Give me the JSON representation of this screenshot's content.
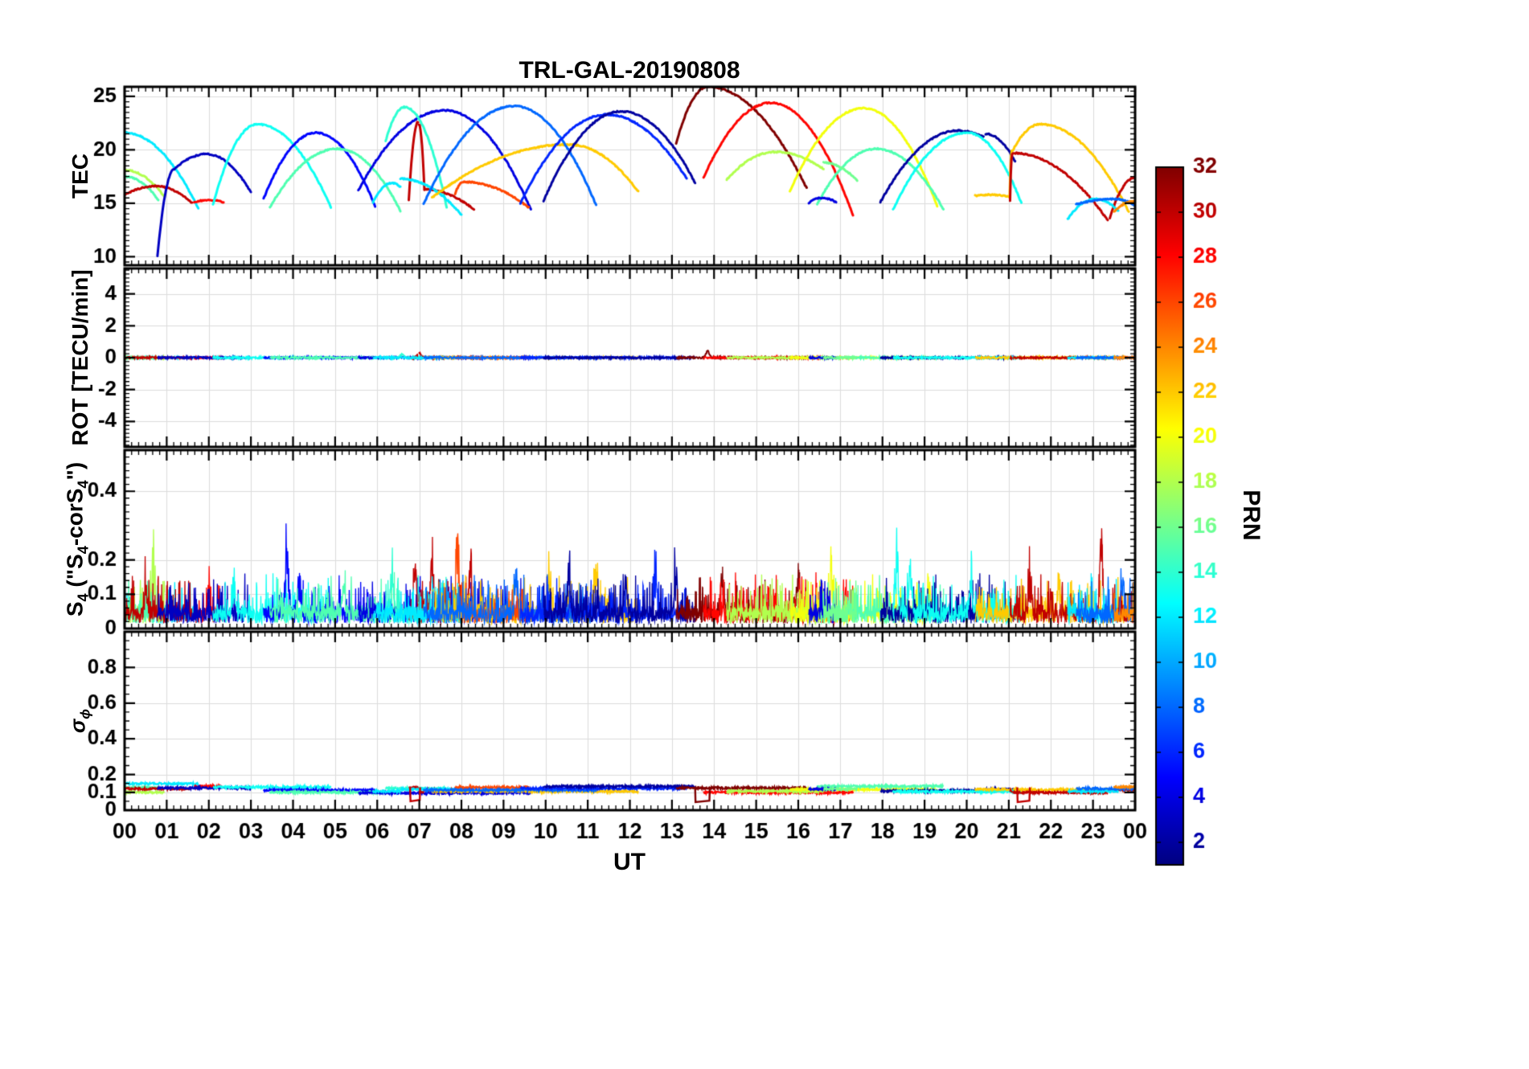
{
  "title": "TRL-GAL-20190808",
  "xlabel": "UT",
  "colorbar": {
    "label": "PRN",
    "vmin": 1,
    "vmax": 32,
    "tick_values": [
      2,
      4,
      6,
      8,
      10,
      12,
      14,
      16,
      18,
      20,
      22,
      24,
      26,
      28,
      30,
      32
    ],
    "tick_labels": [
      "2",
      "4",
      "6",
      "8",
      "10",
      "12",
      "14",
      "16",
      "18",
      "20",
      "22",
      "24",
      "26",
      "28",
      "30",
      "32"
    ]
  },
  "chart_data": {
    "type": "line",
    "title": "TRL-GAL-20190808",
    "colormap": "jet",
    "color_by": "PRN",
    "grid": true,
    "x_axis": {
      "label": "UT",
      "unit": "hours",
      "range": [
        0,
        24
      ],
      "tick_values": [
        0,
        1,
        2,
        3,
        4,
        5,
        6,
        7,
        8,
        9,
        10,
        11,
        12,
        13,
        14,
        15,
        16,
        17,
        18,
        19,
        20,
        21,
        22,
        23,
        24
      ],
      "tick_labels": [
        "00",
        "01",
        "02",
        "03",
        "04",
        "05",
        "06",
        "07",
        "08",
        "09",
        "10",
        "11",
        "12",
        "13",
        "14",
        "15",
        "16",
        "17",
        "18",
        "19",
        "20",
        "21",
        "22",
        "23",
        "00"
      ]
    },
    "panels": [
      {
        "id": "tec",
        "ylabel": "TEC",
        "ylim": [
          9.2,
          25.9
        ],
        "ytick_values": [
          10,
          15,
          20,
          25
        ],
        "ytick_labels": [
          "10",
          "15",
          "20",
          "25"
        ],
        "minor_step": 0.5
      },
      {
        "id": "rot",
        "ylabel": "ROT [TECU/min]",
        "ylim": [
          -5.6,
          5.6
        ],
        "ytick_values": [
          -4,
          -2,
          0,
          2,
          4
        ],
        "ytick_labels": [
          "-4",
          "-2",
          "0",
          "2",
          "4"
        ],
        "minor_step": 0.25
      },
      {
        "id": "s4",
        "ylabel": "S4 (\"S4-corS4\")",
        "ylabel_parts": [
          "S",
          "4",
          " (\"S",
          "4",
          "-corS",
          "4",
          "\")"
        ],
        "ylim": [
          0,
          0.52
        ],
        "ytick_values": [
          0,
          0.1,
          0.2,
          0.4
        ],
        "ytick_labels": [
          "0",
          "0.1",
          "0.2",
          "0.4"
        ],
        "minor_step": 0.02
      },
      {
        "id": "sigma_phi",
        "ylabel": "sigma_phi",
        "ylabel_parts": [
          "σ",
          "ϕ"
        ],
        "ylim": [
          0,
          1.0
        ],
        "ytick_values": [
          0,
          0.1,
          0.2,
          0.4,
          0.6,
          0.8
        ],
        "ytick_labels": [
          "0",
          "0.1",
          "0.2",
          "0.4",
          "0.6",
          "0.8"
        ],
        "minor_step": 0.05
      }
    ],
    "tec_arcs": [
      {
        "p": 12,
        "t0": 0.0,
        "tp": 0.0,
        "t1": 1.75,
        "v0": 21.6,
        "vp": 21.6,
        "v1": 14.5,
        "sig": 0.148
      },
      {
        "p": 18,
        "t0": 0.0,
        "tp": 0.0,
        "t1": 0.95,
        "v0": 18.1,
        "vp": 18.1,
        "v1": 15.6
      },
      {
        "p": 15,
        "t0": 0.0,
        "tp": 0.0,
        "t1": 0.8,
        "v0": 17.5,
        "vp": 17.5,
        "v1": 15.3
      },
      {
        "p": 30,
        "t0": 0.0,
        "tp": 0.75,
        "t1": 1.6,
        "v0": 15.8,
        "vp": 16.6,
        "v1": 15.0
      },
      {
        "p": 28,
        "t0": 1.65,
        "tp": 2.0,
        "t1": 2.35,
        "v0": 15.1,
        "vp": 15.3,
        "v1": 15.1
      },
      {
        "p": 3,
        "t0": 0.78,
        "tp": 1.18,
        "t1": 1.18,
        "v0": 10.1,
        "vp": 18.2,
        "v1": 18.2
      },
      {
        "p": 3,
        "t0": 1.18,
        "tp": 1.95,
        "t1": 3.0,
        "v0": 18.2,
        "vp": 19.6,
        "v1": 16.0
      },
      {
        "p": 13,
        "t0": 2.1,
        "tp": 3.15,
        "t1": 4.9,
        "v0": 14.9,
        "vp": 22.4,
        "v1": 14.6
      },
      {
        "p": 5,
        "t0": 3.3,
        "tp": 4.55,
        "t1": 5.95,
        "v0": 15.4,
        "vp": 21.6,
        "v1": 14.7
      },
      {
        "p": 15,
        "t0": 3.45,
        "tp": 5.05,
        "t1": 6.55,
        "v0": 14.6,
        "vp": 20.1,
        "v1": 14.3
      },
      {
        "p": 4,
        "t0": 5.55,
        "tp": 7.6,
        "t1": 9.65,
        "v0": 16.2,
        "vp": 23.7,
        "v1": 14.4
      },
      {
        "p": 14,
        "t0": 6.2,
        "tp": 6.65,
        "t1": 7.65,
        "v0": 20.8,
        "vp": 24.0,
        "v1": 14.6
      },
      {
        "p": 30,
        "t0": 6.75,
        "tp": 6.97,
        "t1": 6.97,
        "v0": 15.3,
        "vp": 22.6,
        "v1": 22.6
      },
      {
        "p": 30,
        "t0": 6.99,
        "tp": 6.99,
        "t1": 7.12,
        "v0": 22.4,
        "vp": 22.4,
        "v1": 16.3
      },
      {
        "p": 30,
        "t0": 7.12,
        "tp": 7.12,
        "t1": 8.3,
        "v0": 16.3,
        "vp": 16.3,
        "v1": 14.4
      },
      {
        "p": 12,
        "t0": 5.9,
        "tp": 6.35,
        "t1": 6.55,
        "v0": 15.1,
        "vp": 16.9,
        "v1": 16.5
      },
      {
        "p": 12,
        "t0": 6.55,
        "tp": 6.55,
        "t1": 8.0,
        "v0": 17.3,
        "vp": 17.3,
        "v1": 13.9
      },
      {
        "p": 22,
        "t0": 7.3,
        "tp": 10.55,
        "t1": 12.2,
        "v0": 15.5,
        "vp": 20.5,
        "v1": 16.1
      },
      {
        "p": 26,
        "t0": 7.85,
        "tp": 8.05,
        "t1": 9.6,
        "v0": 15.9,
        "vp": 17.0,
        "v1": 14.6
      },
      {
        "p": 8,
        "t0": 7.1,
        "tp": 9.25,
        "t1": 11.2,
        "v0": 14.9,
        "vp": 24.1,
        "v1": 14.8
      },
      {
        "p": 6,
        "t0": 9.4,
        "tp": 11.45,
        "t1": 13.35,
        "v0": 15.0,
        "vp": 23.3,
        "v1": 17.3
      },
      {
        "p": 2,
        "t0": 9.95,
        "tp": 11.8,
        "t1": 13.55,
        "v0": 15.2,
        "vp": 23.6,
        "v1": 16.9
      },
      {
        "p": 32,
        "t0": 13.1,
        "tp": 13.85,
        "t1": 16.2,
        "v0": 20.6,
        "vp": 25.9,
        "v1": 16.4
      },
      {
        "p": 28,
        "t0": 13.75,
        "tp": 15.35,
        "t1": 17.3,
        "v0": 17.4,
        "vp": 24.4,
        "v1": 13.9
      },
      {
        "p": 18,
        "t0": 14.3,
        "tp": 15.45,
        "t1": 16.6,
        "v0": 17.2,
        "vp": 19.8,
        "v1": 18.2
      },
      {
        "p": 20,
        "t0": 15.8,
        "tp": 17.55,
        "t1": 19.3,
        "v0": 16.1,
        "vp": 23.9,
        "v1": 14.7
      },
      {
        "p": 15,
        "t0": 16.45,
        "tp": 17.85,
        "t1": 19.45,
        "v0": 14.9,
        "vp": 20.1,
        "v1": 14.4
      },
      {
        "p": 4,
        "t0": 16.25,
        "tp": 16.55,
        "t1": 16.9,
        "v0": 15.0,
        "vp": 15.5,
        "v1": 15.1
      },
      {
        "p": 16,
        "t0": 16.6,
        "tp": 16.6,
        "t1": 17.4,
        "v0": 18.8,
        "vp": 18.8,
        "v1": 17.1
      },
      {
        "p": 2,
        "t0": 17.95,
        "tp": 19.8,
        "t1": 20.4,
        "v0": 15.1,
        "vp": 21.8,
        "v1": 21.2
      },
      {
        "p": 2,
        "t0": 20.45,
        "tp": 20.45,
        "t1": 21.15,
        "v0": 21.5,
        "vp": 21.5,
        "v1": 18.9
      },
      {
        "p": 13,
        "t0": 18.25,
        "tp": 20.0,
        "t1": 21.3,
        "v0": 14.4,
        "vp": 21.6,
        "v1": 15.0
      },
      {
        "p": 22,
        "t0": 20.2,
        "tp": 20.6,
        "t1": 21.0,
        "v0": 15.7,
        "vp": 15.8,
        "v1": 15.6
      },
      {
        "p": 22,
        "t0": 21.02,
        "tp": 21.07,
        "t1": 21.07,
        "v0": 15.6,
        "vp": 19.9,
        "v1": 19.9
      },
      {
        "p": 22,
        "t0": 21.1,
        "tp": 21.75,
        "t1": 23.85,
        "v0": 20.0,
        "vp": 22.4,
        "v1": 14.2
      },
      {
        "p": 30,
        "t0": 21.03,
        "tp": 21.08,
        "t1": 21.08,
        "v0": 15.2,
        "vp": 19.6,
        "v1": 19.6
      },
      {
        "p": 30,
        "t0": 21.1,
        "tp": 21.1,
        "t1": 23.35,
        "v0": 19.7,
        "vp": 19.7,
        "v1": 13.4
      },
      {
        "p": 30,
        "t0": 23.4,
        "tp": 24.0,
        "t1": 24.0,
        "v0": 13.6,
        "vp": 17.4,
        "v1": 17.4
      },
      {
        "p": 12,
        "t0": 22.4,
        "tp": 23.05,
        "t1": 23.6,
        "v0": 13.5,
        "vp": 15.4,
        "v1": 14.3
      },
      {
        "p": 8,
        "t0": 22.6,
        "tp": 23.5,
        "t1": 24.0,
        "v0": 14.9,
        "vp": 15.4,
        "v1": 14.8
      },
      {
        "p": 24,
        "t0": 23.5,
        "tp": 24.0,
        "t1": 24.0,
        "v0": 14.2,
        "vp": 15.2,
        "v1": 15.2
      }
    ],
    "rot": {
      "baseline": 0,
      "noise": 0.12,
      "spikes": [
        {
          "t": 13.85,
          "p": 32,
          "a": 0.4
        },
        {
          "t": 7.0,
          "p": 30,
          "a": 0.3
        },
        {
          "t": 6.6,
          "p": 14,
          "a": 0.2
        }
      ]
    },
    "s4": {
      "base": 0.05,
      "noise": 0.045,
      "spikes": [
        {
          "t": 0.68,
          "p": 18,
          "a": 0.24
        },
        {
          "t": 0.5,
          "p": 30,
          "a": 0.12
        },
        {
          "t": 2.0,
          "p": 28,
          "a": 0.1
        },
        {
          "t": 2.6,
          "p": 13,
          "a": 0.12
        },
        {
          "t": 3.85,
          "p": 5,
          "a": 0.27
        },
        {
          "t": 4.15,
          "p": 5,
          "a": 0.16
        },
        {
          "t": 5.2,
          "p": 15,
          "a": 0.13
        },
        {
          "t": 6.35,
          "p": 14,
          "a": 0.19
        },
        {
          "t": 6.9,
          "p": 30,
          "a": 0.16
        },
        {
          "t": 7.3,
          "p": 30,
          "a": 0.22
        },
        {
          "t": 7.9,
          "p": 26,
          "a": 0.26
        },
        {
          "t": 8.2,
          "p": 30,
          "a": 0.18
        },
        {
          "t": 8.6,
          "p": 24,
          "a": 0.18
        },
        {
          "t": 9.3,
          "p": 8,
          "a": 0.16
        },
        {
          "t": 10.1,
          "p": 22,
          "a": 0.18
        },
        {
          "t": 10.55,
          "p": 2,
          "a": 0.22
        },
        {
          "t": 11.2,
          "p": 22,
          "a": 0.2
        },
        {
          "t": 11.9,
          "p": 2,
          "a": 0.15
        },
        {
          "t": 12.6,
          "p": 6,
          "a": 0.14
        },
        {
          "t": 13.1,
          "p": 2,
          "a": 0.17
        },
        {
          "t": 14.2,
          "p": 32,
          "a": 0.15
        },
        {
          "t": 15.3,
          "p": 28,
          "a": 0.13
        },
        {
          "t": 16.0,
          "p": 32,
          "a": 0.14
        },
        {
          "t": 16.8,
          "p": 20,
          "a": 0.13
        },
        {
          "t": 18.35,
          "p": 13,
          "a": 0.22
        },
        {
          "t": 18.65,
          "p": 13,
          "a": 0.18
        },
        {
          "t": 19.1,
          "p": 20,
          "a": 0.14
        },
        {
          "t": 20.1,
          "p": 13,
          "a": 0.12
        },
        {
          "t": 21.5,
          "p": 30,
          "a": 0.13
        },
        {
          "t": 22.2,
          "p": 22,
          "a": 0.12
        },
        {
          "t": 23.2,
          "p": 30,
          "a": 0.27
        },
        {
          "t": 23.7,
          "p": 8,
          "a": 0.14
        }
      ]
    },
    "sigma": {
      "base_level": 0.115,
      "level_jitter": 0.02,
      "noise": 0.012,
      "notches": [
        {
          "p": 32,
          "t0": 13.55,
          "t1": 13.9,
          "low": 0.045
        },
        {
          "p": 30,
          "t0": 21.2,
          "t1": 21.5,
          "low": 0.045
        },
        {
          "p": 30,
          "t0": 6.78,
          "t1": 7.02,
          "low": 0.05
        }
      ]
    }
  }
}
